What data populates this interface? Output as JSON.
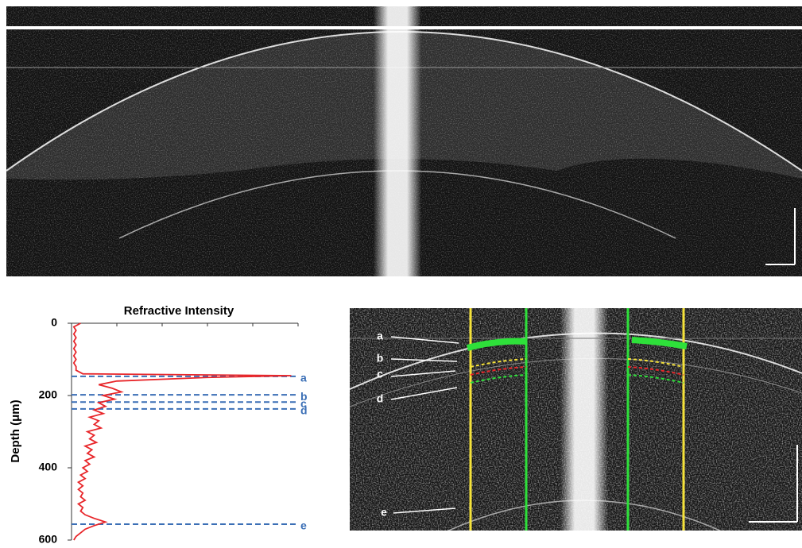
{
  "chart_data": {
    "type": "line",
    "title": "Refractive Intensity",
    "y_label": "Depth (μm)",
    "ylim": [
      0,
      600
    ],
    "y_reversed": true,
    "yticks": [
      0,
      200,
      400,
      600
    ],
    "xlim": [
      0,
      1
    ],
    "color": "#e8262a",
    "depth": [
      0,
      10,
      20,
      30,
      40,
      50,
      60,
      70,
      80,
      90,
      100,
      110,
      120,
      130,
      140,
      145,
      150,
      160,
      170,
      180,
      190,
      200,
      210,
      220,
      230,
      240,
      250,
      260,
      270,
      280,
      290,
      300,
      310,
      320,
      330,
      340,
      350,
      360,
      370,
      380,
      390,
      400,
      410,
      420,
      430,
      440,
      450,
      460,
      470,
      480,
      490,
      500,
      510,
      520,
      530,
      540,
      550,
      560,
      570,
      580,
      590,
      600
    ],
    "intensity": [
      0.04,
      0.01,
      0.02,
      0.01,
      0.02,
      0.01,
      0.02,
      0.01,
      0.02,
      0.01,
      0.02,
      0.01,
      0.02,
      0.02,
      0.05,
      0.97,
      0.6,
      0.2,
      0.12,
      0.18,
      0.22,
      0.14,
      0.19,
      0.12,
      0.15,
      0.1,
      0.14,
      0.08,
      0.12,
      0.1,
      0.13,
      0.07,
      0.1,
      0.08,
      0.11,
      0.06,
      0.09,
      0.07,
      0.1,
      0.06,
      0.08,
      0.05,
      0.07,
      0.04,
      0.06,
      0.03,
      0.05,
      0.03,
      0.05,
      0.04,
      0.06,
      0.03,
      0.05,
      0.04,
      0.06,
      0.1,
      0.15,
      0.1,
      0.06,
      0.04,
      0.02,
      0.01
    ],
    "annotations": [
      {
        "label": "a",
        "depth": 147
      },
      {
        "label": "b",
        "depth": 198
      },
      {
        "label": "c",
        "depth": 218
      },
      {
        "label": "d",
        "depth": 237
      },
      {
        "label": "e",
        "depth": 556
      }
    ],
    "annotation_color": "#3b6fb6"
  },
  "oct_image": {
    "labels": [
      "a",
      "b",
      "c",
      "d",
      "e"
    ]
  }
}
